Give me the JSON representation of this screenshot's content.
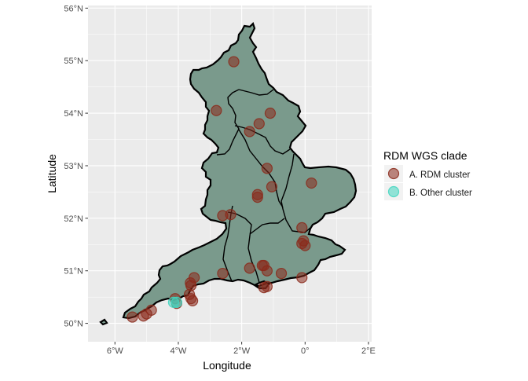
{
  "chart_data": {
    "type": "scatter",
    "title": "",
    "xlabel": "Longitude",
    "ylabel": "Latitude",
    "xlim": [
      -6.85,
      2.1
    ],
    "ylim": [
      49.65,
      56.05
    ],
    "x_ticks": [
      {
        "value": -6,
        "label": "6°W"
      },
      {
        "value": -4,
        "label": "4°W"
      },
      {
        "value": -2,
        "label": "2°W"
      },
      {
        "value": 0,
        "label": "0°"
      },
      {
        "value": 2,
        "label": "2°E"
      }
    ],
    "y_ticks": [
      {
        "value": 50,
        "label": "50°N"
      },
      {
        "value": 51,
        "label": "51°N"
      },
      {
        "value": 52,
        "label": "52°N"
      },
      {
        "value": 53,
        "label": "53°N"
      },
      {
        "value": 54,
        "label": "54°N"
      },
      {
        "value": 55,
        "label": "55°N"
      },
      {
        "value": 56,
        "label": "56°N"
      }
    ],
    "grid": true,
    "panel_background": "#ebebeb",
    "legend": {
      "title": "RDM WGS clade",
      "position": "right",
      "entries": [
        {
          "label": "A. RDM cluster",
          "color": "#8b2a1b"
        },
        {
          "label": "B. Other cluster",
          "color": "#3fd6c0"
        }
      ]
    },
    "map": {
      "region": "England",
      "fill": "#7a9a8c",
      "border": "#000000"
    },
    "series": [
      {
        "name": "A. RDM cluster",
        "color": "#8b2a1b",
        "points": [
          {
            "lon": -2.25,
            "lat": 54.98
          },
          {
            "lon": -2.8,
            "lat": 54.05
          },
          {
            "lon": -1.1,
            "lat": 54.0
          },
          {
            "lon": -1.45,
            "lat": 53.8
          },
          {
            "lon": -1.75,
            "lat": 53.65
          },
          {
            "lon": -1.2,
            "lat": 52.95
          },
          {
            "lon": -1.5,
            "lat": 52.45
          },
          {
            "lon": -1.5,
            "lat": 52.4
          },
          {
            "lon": -1.05,
            "lat": 52.6
          },
          {
            "lon": 0.2,
            "lat": 52.67
          },
          {
            "lon": -2.6,
            "lat": 52.05
          },
          {
            "lon": -2.35,
            "lat": 52.07
          },
          {
            "lon": -0.1,
            "lat": 51.82
          },
          {
            "lon": -0.05,
            "lat": 51.57
          },
          {
            "lon": -0.1,
            "lat": 51.52
          },
          {
            "lon": 0.0,
            "lat": 51.48
          },
          {
            "lon": -1.3,
            "lat": 51.1
          },
          {
            "lon": -1.35,
            "lat": 51.1
          },
          {
            "lon": -1.2,
            "lat": 51.0
          },
          {
            "lon": -1.75,
            "lat": 51.05
          },
          {
            "lon": -0.75,
            "lat": 50.95
          },
          {
            "lon": -0.1,
            "lat": 50.87
          },
          {
            "lon": -1.2,
            "lat": 50.7
          },
          {
            "lon": -1.3,
            "lat": 50.68
          },
          {
            "lon": -2.6,
            "lat": 50.95
          },
          {
            "lon": -3.5,
            "lat": 50.87
          },
          {
            "lon": -3.62,
            "lat": 50.77
          },
          {
            "lon": -3.6,
            "lat": 50.72
          },
          {
            "lon": -3.65,
            "lat": 50.55
          },
          {
            "lon": -3.6,
            "lat": 50.47
          },
          {
            "lon": -3.55,
            "lat": 50.43
          },
          {
            "lon": -4.1,
            "lat": 50.47
          },
          {
            "lon": -4.05,
            "lat": 50.38
          },
          {
            "lon": -4.85,
            "lat": 50.25
          },
          {
            "lon": -5.0,
            "lat": 50.18
          },
          {
            "lon": -5.1,
            "lat": 50.14
          },
          {
            "lon": -5.45,
            "lat": 50.12
          }
        ]
      },
      {
        "name": "B. Other cluster",
        "color": "#3fd6c0",
        "points": [
          {
            "lon": -4.15,
            "lat": 50.4
          },
          {
            "lon": -4.05,
            "lat": 50.4
          }
        ]
      }
    ]
  }
}
